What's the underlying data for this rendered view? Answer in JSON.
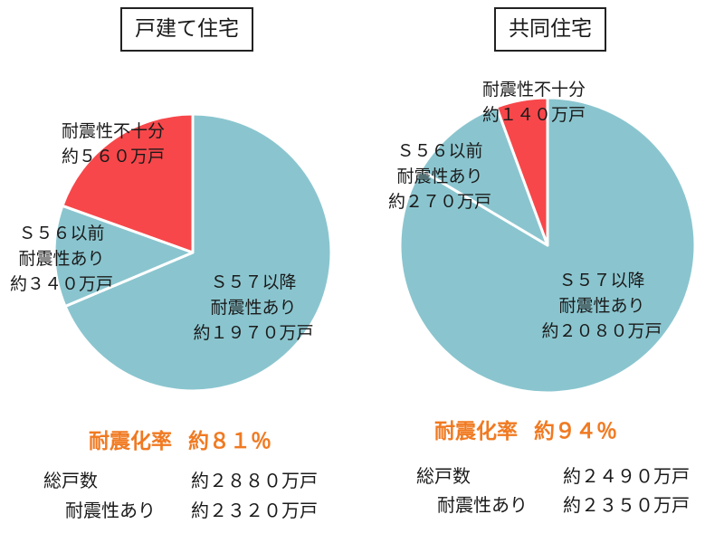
{
  "colors": {
    "teal": "#8ac5cf",
    "red": "#f7474a",
    "orange": "#f07a22"
  },
  "chart_data": [
    {
      "type": "pie",
      "title": "戸建て住宅",
      "slices": [
        {
          "label": "S57以降 耐震性あり",
          "label_lines": [
            "Ｓ５７以降",
            "耐震性あり",
            "約１９７０万戸"
          ],
          "value": 1970,
          "color": "#8ac5cf"
        },
        {
          "label": "S56以前 耐震性あり",
          "label_lines": [
            "Ｓ５６以前",
            "耐震性あり",
            "約３４０万戸"
          ],
          "value": 340,
          "color": "#8ac5cf"
        },
        {
          "label": "耐震性不十分",
          "label_lines": [
            "耐震性不十分",
            "約５６０万戸"
          ],
          "value": 560,
          "color": "#f7474a"
        }
      ],
      "rate_label": "耐震化率",
      "rate_value": "約８１％",
      "totals": [
        {
          "key": "総戸数",
          "value": "約２８８０万戸"
        },
        {
          "key": "耐震性あり",
          "value": "約２３２０万戸"
        }
      ]
    },
    {
      "type": "pie",
      "title": "共同住宅",
      "slices": [
        {
          "label": "S57以降 耐震性あり",
          "label_lines": [
            "Ｓ５７以降",
            "耐震性あり",
            "約２０８０万戸"
          ],
          "value": 2080,
          "color": "#8ac5cf"
        },
        {
          "label": "S56以前 耐震性あり",
          "label_lines": [
            "Ｓ５６以前",
            "耐震性あり",
            "約２７０万戸"
          ],
          "value": 270,
          "color": "#8ac5cf"
        },
        {
          "label": "耐震性不十分",
          "label_lines": [
            "耐震性不十分",
            "約１４０万戸"
          ],
          "value": 140,
          "color": "#f7474a"
        }
      ],
      "rate_label": "耐震化率",
      "rate_value": "約９４％",
      "totals": [
        {
          "key": "総戸数",
          "value": "約２４９０万戸"
        },
        {
          "key": "耐震性あり",
          "value": "約２３５０万戸"
        }
      ]
    }
  ]
}
